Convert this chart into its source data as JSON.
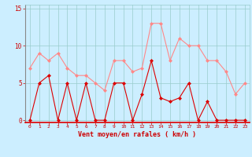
{
  "x": [
    0,
    1,
    2,
    3,
    4,
    5,
    6,
    7,
    8,
    9,
    10,
    11,
    12,
    13,
    14,
    15,
    16,
    17,
    18,
    19,
    20,
    21,
    22,
    23
  ],
  "vent_moyen": [
    0,
    5,
    6,
    0,
    5,
    0,
    5,
    0,
    0,
    5,
    5,
    0,
    3.5,
    8,
    3,
    2.5,
    3,
    5,
    0,
    2.5,
    0,
    0,
    0,
    0
  ],
  "rafales": [
    7,
    9,
    8,
    9,
    7,
    6,
    6,
    5,
    4,
    8,
    8,
    6.5,
    7,
    13,
    13,
    8,
    11,
    10,
    10,
    8,
    8,
    6.5,
    3.5,
    5
  ],
  "bg_color": "#cceeff",
  "grid_color": "#99cccc",
  "line_color_moyen": "#dd0000",
  "line_color_rafales": "#ff8888",
  "xlabel": "Vent moyen/en rafales ( km/h )",
  "xlabel_color": "#cc0000",
  "tick_color": "#cc0000",
  "yticks": [
    0,
    5,
    10,
    15
  ],
  "ylim": [
    -0.3,
    15.5
  ],
  "xlim": [
    -0.5,
    23.5
  ]
}
